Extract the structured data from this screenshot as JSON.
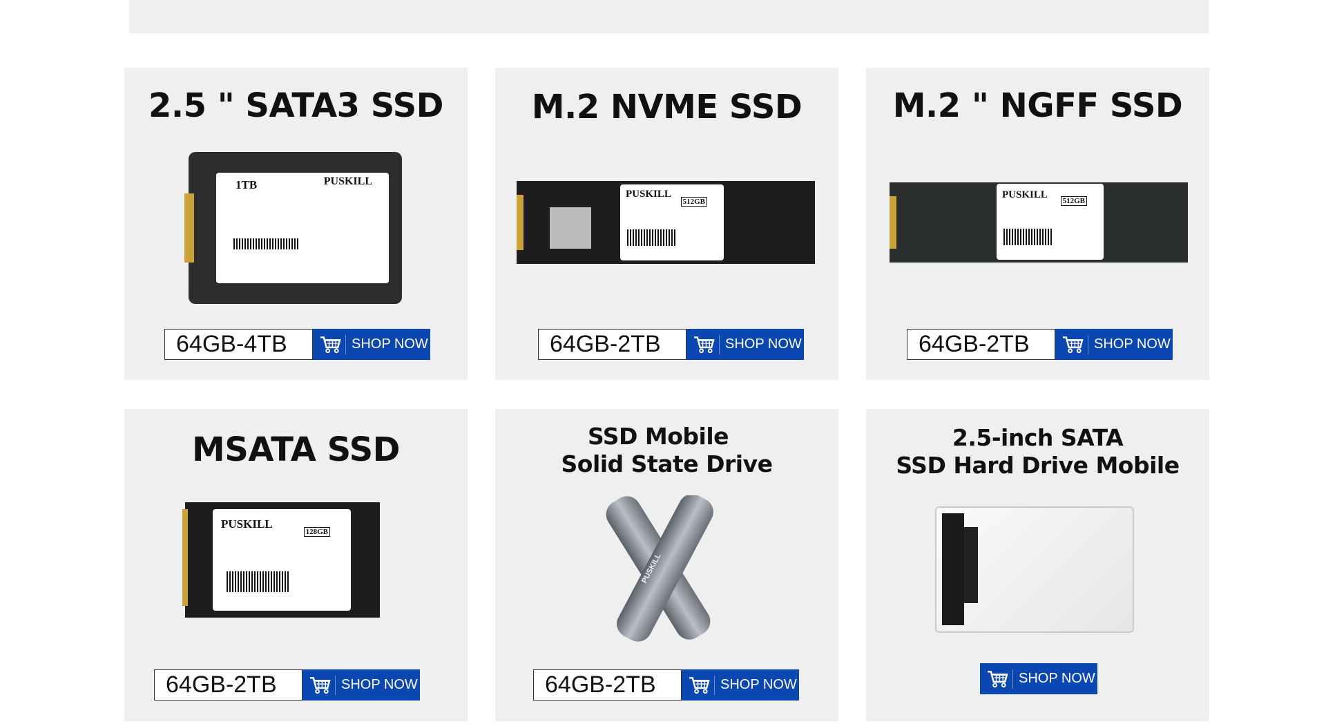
{
  "cards": [
    {
      "title": "2.5 \" SATA3 SSD",
      "range": "64GB-4TB",
      "shop": "SHOP NOW",
      "image_label": {
        "capacity": "1TB",
        "brand": "PUSKILL"
      }
    },
    {
      "title": "M.2 NVME SSD",
      "range": "64GB-2TB",
      "shop": "SHOP NOW",
      "image_label": {
        "capacity": "512GB",
        "brand": "PUSKILL"
      }
    },
    {
      "title": "M.2 \" NGFF SSD",
      "range": "64GB-2TB",
      "shop": "SHOP NOW",
      "image_label": {
        "capacity": "512GB",
        "brand": "PUSKILL"
      }
    },
    {
      "title": "MSATA SSD",
      "range": "64GB-2TB",
      "shop": "SHOP NOW",
      "image_label": {
        "capacity": "128GB",
        "brand": "PUSKILL"
      }
    },
    {
      "title_lines": [
        "SSD Mobile",
        "Solid State Drive"
      ],
      "range": "64GB-2TB",
      "shop": "SHOP NOW",
      "image_label": {
        "brand": "PUSKILL"
      }
    },
    {
      "title_lines": [
        "2.5-inch SATA",
        "SSD Hard Drive Mobile"
      ],
      "shop": "SHOP NOW"
    }
  ],
  "colors": {
    "card_bg": "#efefef",
    "button": "#0b47b1"
  },
  "icons": {
    "shop": "shopping-cart-icon"
  }
}
